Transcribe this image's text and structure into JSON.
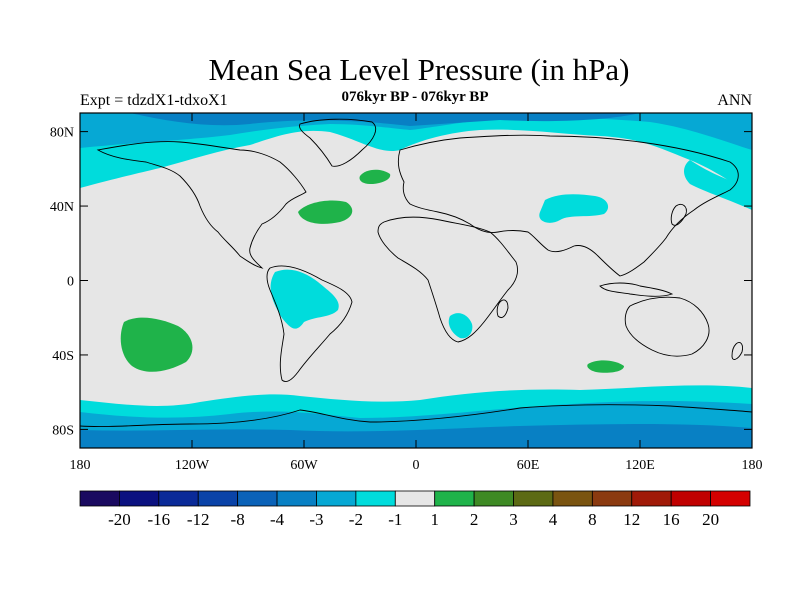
{
  "title": "Mean Sea Level Pressure (in hPa)",
  "experiment_label": "Expt = tdzdX1-tdxoX1",
  "period_label": "076kyr BP - 076kyr BP",
  "season_label": "ANN",
  "colors": {
    "land_background": "#e6e6e6",
    "coastline": "#000000",
    "frame": "#000000"
  },
  "map": {
    "lat_ticks": [
      {
        "value": 80,
        "label": "80N"
      },
      {
        "value": 40,
        "label": "40N"
      },
      {
        "value": 0,
        "label": "0"
      },
      {
        "value": -40,
        "label": "40S"
      },
      {
        "value": -80,
        "label": "80S"
      }
    ],
    "lon_ticks": [
      {
        "value": -180,
        "label": "180"
      },
      {
        "value": -120,
        "label": "120W"
      },
      {
        "value": -60,
        "label": "60W"
      },
      {
        "value": 0,
        "label": "0"
      },
      {
        "value": 60,
        "label": "60E"
      },
      {
        "value": 120,
        "label": "120E"
      },
      {
        "value": 180,
        "label": "180"
      }
    ],
    "lon_range": [
      -180,
      180
    ],
    "lat_range": [
      -90,
      90
    ]
  },
  "colorbar": {
    "boundaries": [
      "-20",
      "-16",
      "-12",
      "-8",
      "-4",
      "-3",
      "-2",
      "-1",
      "1",
      "2",
      "3",
      "4",
      "8",
      "12",
      "16",
      "20"
    ],
    "colors": [
      "#1a0a60",
      "#0b1180",
      "#0a2a98",
      "#0a43a8",
      "#0b62b8",
      "#0880c4",
      "#06a8d4",
      "#00dcdc",
      "#e6e6e6",
      "#1fb34a",
      "#3e8a24",
      "#5c6a14",
      "#7a5410",
      "#8b3a10",
      "#a01a08",
      "#c00000",
      "#d40000"
    ]
  }
}
